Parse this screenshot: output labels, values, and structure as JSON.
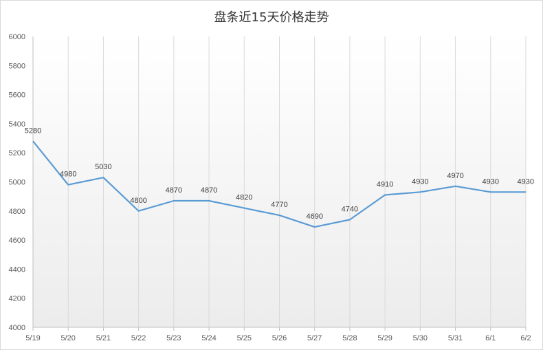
{
  "chart_data": {
    "type": "line",
    "title": "盘条近15天价格走势",
    "xlabel": "",
    "ylabel": "",
    "categories": [
      "5/19",
      "5/20",
      "5/21",
      "5/22",
      "5/23",
      "5/24",
      "5/25",
      "5/26",
      "5/27",
      "5/28",
      "5/29",
      "5/30",
      "5/31",
      "6/1",
      "6/2"
    ],
    "series": [
      {
        "values": [
          5280,
          4980,
          5030,
          4800,
          4870,
          4870,
          4820,
          4770,
          4690,
          4740,
          4910,
          4930,
          4970,
          4930,
          4930
        ]
      }
    ],
    "ylim": [
      4000,
      6000
    ],
    "yticks": [
      4000,
      4200,
      4400,
      4600,
      4800,
      5000,
      5200,
      5400,
      5600,
      5800,
      6000
    ],
    "grid": "vertical",
    "legend": "none",
    "colors": {
      "line": "#5b9bd5",
      "grid": "#d9d9d9",
      "axis": "#bfbfbf"
    }
  }
}
